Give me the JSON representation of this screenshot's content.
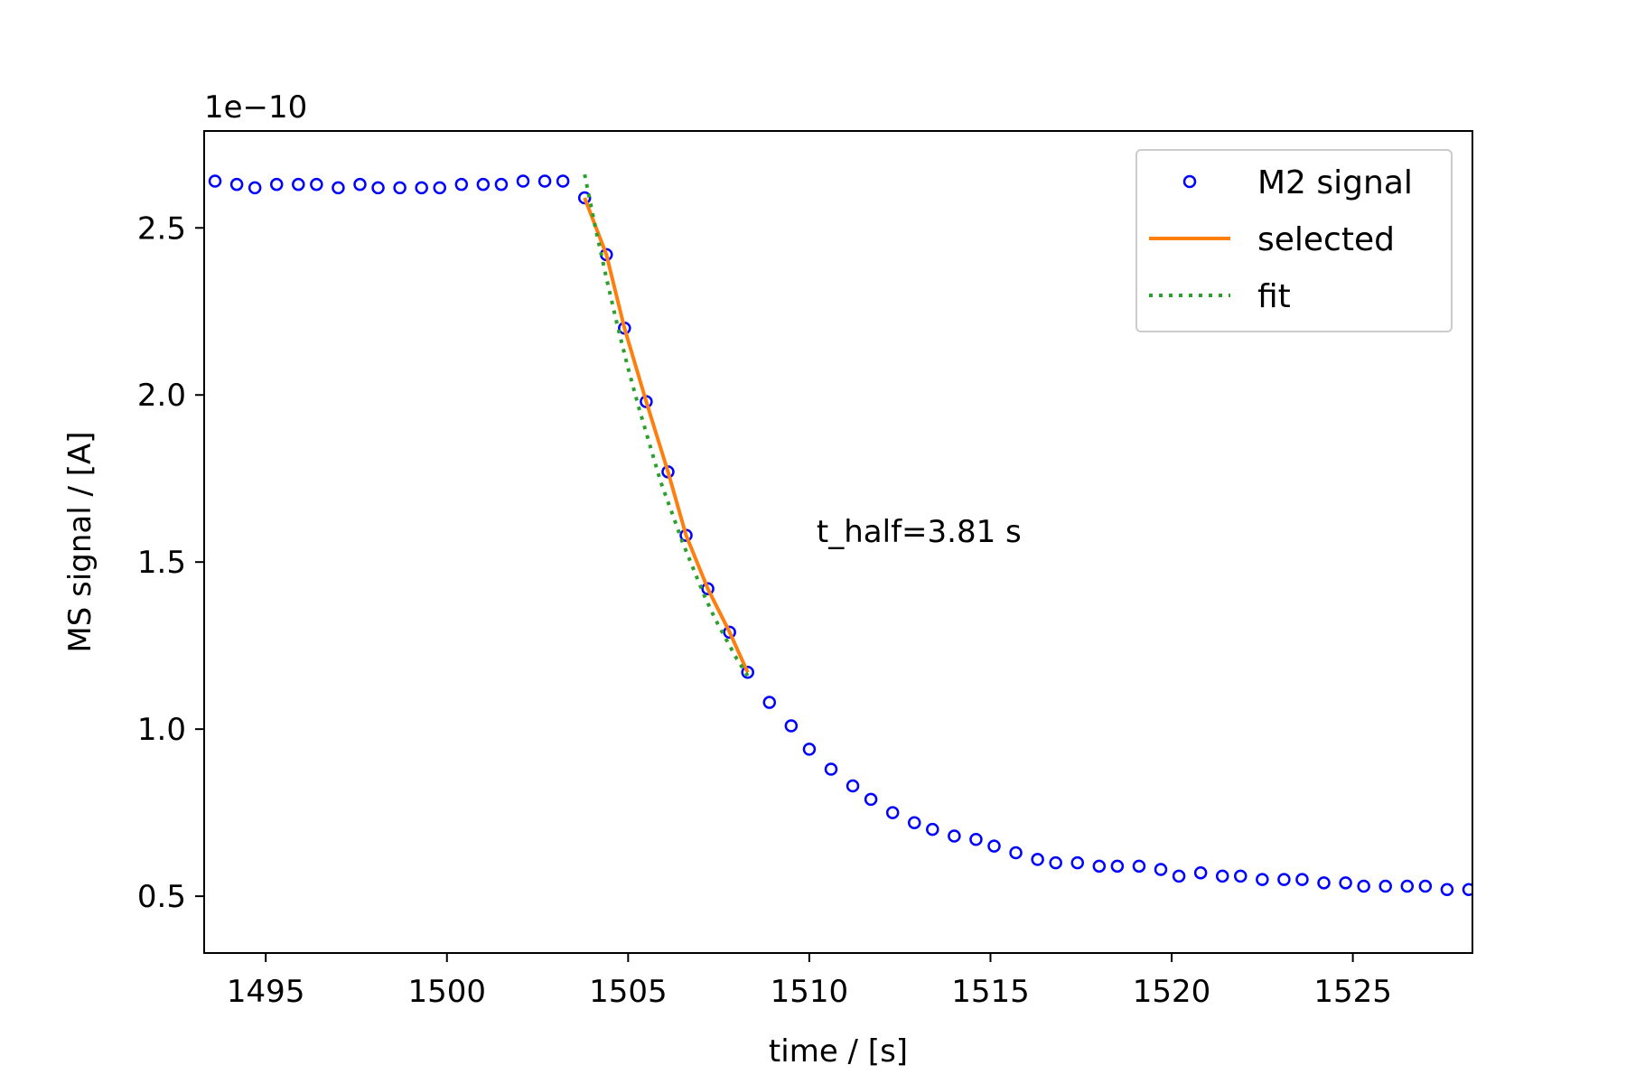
{
  "chart_data": {
    "type": "scatter",
    "title": "",
    "xlabel": "time / [s]",
    "ylabel": "MS signal / [A]",
    "y_scale_label": "1e−10",
    "xlim": [
      1493.3,
      1528.3
    ],
    "ylim": [
      0.33,
      2.79
    ],
    "x_ticks": [
      1495,
      1500,
      1505,
      1510,
      1515,
      1520,
      1525
    ],
    "y_ticks": [
      0.5,
      1.0,
      1.5,
      2.0,
      2.5
    ],
    "x_tick_labels": [
      "1495",
      "1500",
      "1505",
      "1510",
      "1515",
      "1520",
      "1525"
    ],
    "y_tick_labels": [
      "0.5",
      "1.0",
      "1.5",
      "2.0",
      "2.5"
    ],
    "grid": false,
    "legend_position": "top-right",
    "annotation": "t_half=3.81 s",
    "annotation_position": {
      "x": 1510.2,
      "y": 1.56
    },
    "series": [
      {
        "name": "M2 signal",
        "style": "markers",
        "color": "#0000ff",
        "x": [
          1493.6,
          1494.2,
          1494.7,
          1495.3,
          1495.9,
          1496.4,
          1497.0,
          1497.6,
          1498.1,
          1498.7,
          1499.3,
          1499.8,
          1500.4,
          1501.0,
          1501.5,
          1502.1,
          1502.7,
          1503.2,
          1503.8,
          1504.4,
          1504.9,
          1505.5,
          1506.1,
          1506.6,
          1507.2,
          1507.8,
          1508.3,
          1508.9,
          1509.5,
          1510.0,
          1510.6,
          1511.2,
          1511.7,
          1512.3,
          1512.9,
          1513.4,
          1514.0,
          1514.6,
          1515.1,
          1515.7,
          1516.3,
          1516.8,
          1517.4,
          1518.0,
          1518.5,
          1519.1,
          1519.7,
          1520.2,
          1520.8,
          1521.4,
          1521.9,
          1522.5,
          1523.1,
          1523.6,
          1524.2,
          1524.8,
          1525.3,
          1525.9,
          1526.5,
          1527.0,
          1527.6,
          1528.2
        ],
        "y": [
          2.64,
          2.63,
          2.62,
          2.63,
          2.63,
          2.63,
          2.62,
          2.63,
          2.62,
          2.62,
          2.62,
          2.62,
          2.63,
          2.63,
          2.63,
          2.64,
          2.64,
          2.64,
          2.59,
          2.42,
          2.2,
          1.98,
          1.77,
          1.58,
          1.42,
          1.29,
          1.17,
          1.08,
          1.01,
          0.94,
          0.88,
          0.83,
          0.79,
          0.75,
          0.72,
          0.7,
          0.68,
          0.67,
          0.65,
          0.63,
          0.61,
          0.6,
          0.6,
          0.59,
          0.59,
          0.59,
          0.58,
          0.56,
          0.57,
          0.56,
          0.56,
          0.55,
          0.55,
          0.55,
          0.54,
          0.54,
          0.53,
          0.53,
          0.53,
          0.53,
          0.52,
          0.52
        ]
      },
      {
        "name": "selected",
        "style": "line",
        "color": "#ff7f0e",
        "x": [
          1503.8,
          1504.4,
          1504.9,
          1505.5,
          1506.1,
          1506.6,
          1507.2,
          1507.8,
          1508.3
        ],
        "y": [
          2.59,
          2.42,
          2.2,
          1.98,
          1.77,
          1.58,
          1.42,
          1.29,
          1.17
        ]
      },
      {
        "name": "fit",
        "style": "dotted-line",
        "color": "#2ca02c",
        "x": [
          1503.8,
          1504.1,
          1504.4,
          1504.7,
          1505.0,
          1505.3,
          1505.6,
          1505.9,
          1506.2,
          1506.5,
          1506.8,
          1507.1,
          1507.4,
          1507.7,
          1508.0,
          1508.3
        ],
        "y": [
          2.66,
          2.5,
          2.35,
          2.21,
          2.08,
          1.96,
          1.85,
          1.74,
          1.65,
          1.56,
          1.48,
          1.4,
          1.33,
          1.27,
          1.21,
          1.16
        ]
      }
    ]
  }
}
